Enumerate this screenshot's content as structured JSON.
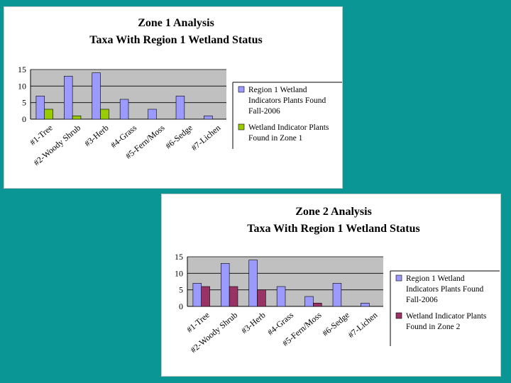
{
  "chart_data": [
    {
      "type": "bar",
      "title": "Zone 1 Analysis",
      "subtitle": "Taxa With Region 1 Wetland Status",
      "categories": [
        "#1-Tree",
        "#2-Woody Shrub",
        "#3-Herb",
        "#4-Grass",
        "#5-Fern/Moss",
        "#6-Sedge",
        "#7-Lichen"
      ],
      "series": [
        {
          "name": "Region 1 Wetland Indicators Plants Found Fall-2006",
          "legend_lines": [
            "Region 1 Wetland",
            "Indicators Plants Found",
            "Fall-2006"
          ],
          "color": "#9a9aff",
          "values": [
            7,
            13,
            14,
            6,
            3,
            7,
            1
          ]
        },
        {
          "name": "Wetland Indicator Plants Found in Zone 1",
          "legend_lines": [
            "Wetland Indicator Plants",
            "Found in Zone 1"
          ],
          "color": "#99cc00",
          "values": [
            3,
            1,
            3,
            0,
            0,
            0,
            0
          ]
        }
      ],
      "yticks": [
        0,
        5,
        10,
        15
      ],
      "ylim": [
        0,
        15
      ],
      "plot_background": "#c0c0c0",
      "legend": "right"
    },
    {
      "type": "bar",
      "title": "Zone 2 Analysis",
      "subtitle": "Taxa With Region 1 Wetland Status",
      "categories": [
        "#1-Tree",
        "#2-Woody Shrub",
        "#3-Herb",
        "#4-Grass",
        "#5-Fern/Moss",
        "#6-Sedge",
        "#7-Lichen"
      ],
      "series": [
        {
          "name": "Region 1 Wetland Indicators Plants Found Fall-2006",
          "legend_lines": [
            "Region 1 Wetland",
            "Indicators Plants Found",
            "Fall-2006"
          ],
          "color": "#9a9aff",
          "values": [
            7,
            13,
            14,
            6,
            3,
            7,
            1
          ]
        },
        {
          "name": "Wetland Indicator Plants Found in Zone 2",
          "legend_lines": [
            "Wetland Indicator Plants",
            "Found in Zone 2"
          ],
          "color": "#993366",
          "values": [
            6,
            6,
            5,
            0,
            1,
            0,
            0
          ]
        }
      ],
      "yticks": [
        0,
        5,
        10,
        15
      ],
      "ylim": [
        0,
        15
      ],
      "plot_background": "#c0c0c0",
      "legend": "right"
    }
  ]
}
